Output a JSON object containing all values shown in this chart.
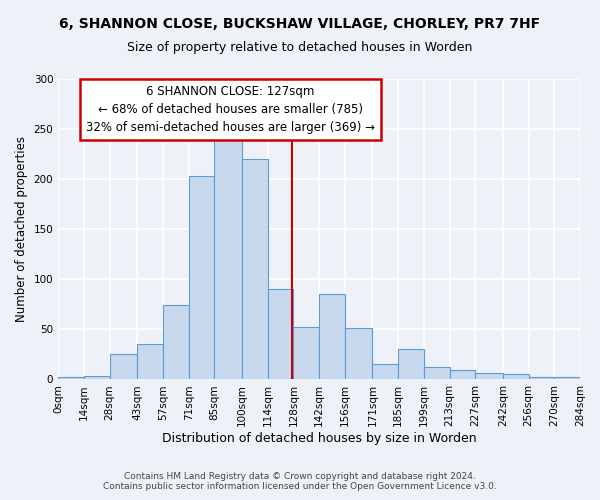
{
  "title": "6, SHANNON CLOSE, BUCKSHAW VILLAGE, CHORLEY, PR7 7HF",
  "subtitle": "Size of property relative to detached houses in Worden",
  "xlabel": "Distribution of detached houses by size in Worden",
  "ylabel": "Number of detached properties",
  "bar_left_edges": [
    0,
    14,
    28,
    43,
    57,
    71,
    85,
    100,
    114,
    128,
    142,
    156,
    171,
    185,
    199,
    213,
    227,
    242,
    256,
    270
  ],
  "bar_widths": [
    14,
    14,
    15,
    14,
    14,
    14,
    15,
    14,
    14,
    14,
    14,
    15,
    14,
    14,
    14,
    14,
    15,
    14,
    14,
    14
  ],
  "bar_heights": [
    2,
    3,
    25,
    35,
    74,
    203,
    250,
    220,
    90,
    52,
    85,
    51,
    15,
    30,
    12,
    9,
    6,
    5,
    2,
    2
  ],
  "bar_color": "#c9d9ed",
  "bar_edgecolor": "#5b9bd5",
  "tick_labels": [
    "0sqm",
    "14sqm",
    "28sqm",
    "43sqm",
    "57sqm",
    "71sqm",
    "85sqm",
    "100sqm",
    "114sqm",
    "128sqm",
    "142sqm",
    "156sqm",
    "171sqm",
    "185sqm",
    "199sqm",
    "213sqm",
    "227sqm",
    "242sqm",
    "256sqm",
    "270sqm",
    "284sqm"
  ],
  "tick_positions": [
    0,
    14,
    28,
    43,
    57,
    71,
    85,
    100,
    114,
    128,
    142,
    156,
    171,
    185,
    199,
    213,
    227,
    242,
    256,
    270,
    284
  ],
  "ylim": [
    0,
    300
  ],
  "yticks": [
    0,
    50,
    100,
    150,
    200,
    250,
    300
  ],
  "vline_x": 127,
  "vline_color": "#cc0000",
  "annotation_title": "6 SHANNON CLOSE: 127sqm",
  "annotation_line1": "← 68% of detached houses are smaller (785)",
  "annotation_line2": "32% of semi-detached houses are larger (369) →",
  "annotation_box_color": "#cc0000",
  "footer1": "Contains HM Land Registry data © Crown copyright and database right 2024.",
  "footer2": "Contains public sector information licensed under the Open Government Licence v3.0.",
  "bg_color": "#eef2f8",
  "grid_color": "#ffffff",
  "xlim": [
    0,
    284
  ]
}
